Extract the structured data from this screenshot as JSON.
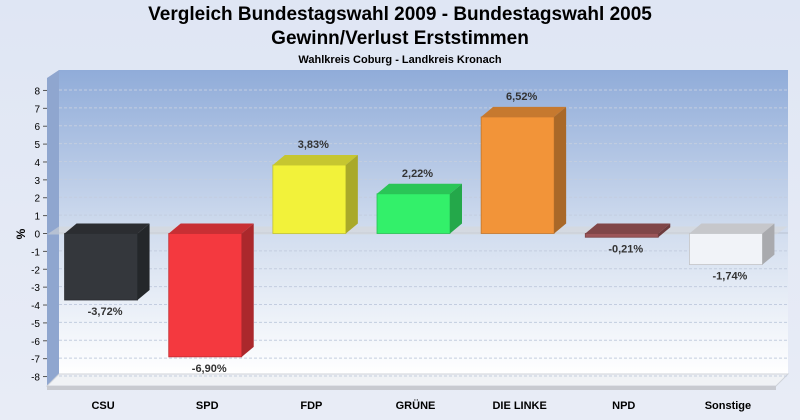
{
  "chart_data": {
    "type": "bar",
    "title": "Vergleich Bundestagswahl 2009 - Bundestagswahl 2005",
    "subtitle": "Gewinn/Verlust Erststimmen",
    "caption": "Wahlkreis Coburg - Landkreis Kronach",
    "ylabel": "%",
    "ylim": [
      -8.5,
      8.5
    ],
    "yticks": [
      8,
      7,
      6,
      5,
      4,
      3,
      2,
      1,
      0,
      -1,
      -2,
      -3,
      -4,
      -5,
      -6,
      -7,
      -8
    ],
    "categories": [
      "CSU",
      "SPD",
      "FDP",
      "GRÜNE",
      "DIE LINKE",
      "NPD",
      "Sonstige"
    ],
    "values": [
      -3.72,
      -6.9,
      3.83,
      2.22,
      6.52,
      -0.21,
      -1.74
    ],
    "value_labels": [
      "-3,72%",
      "-6,90%",
      "3,83%",
      "2,22%",
      "6,52%",
      "-0,21%",
      "-1,74%"
    ],
    "colors": [
      "#34373c",
      "#f4393f",
      "#f2f23a",
      "#33f06a",
      "#f29439",
      "#9c5558",
      "#f1f3f8"
    ],
    "grid": true,
    "legend": "none"
  }
}
